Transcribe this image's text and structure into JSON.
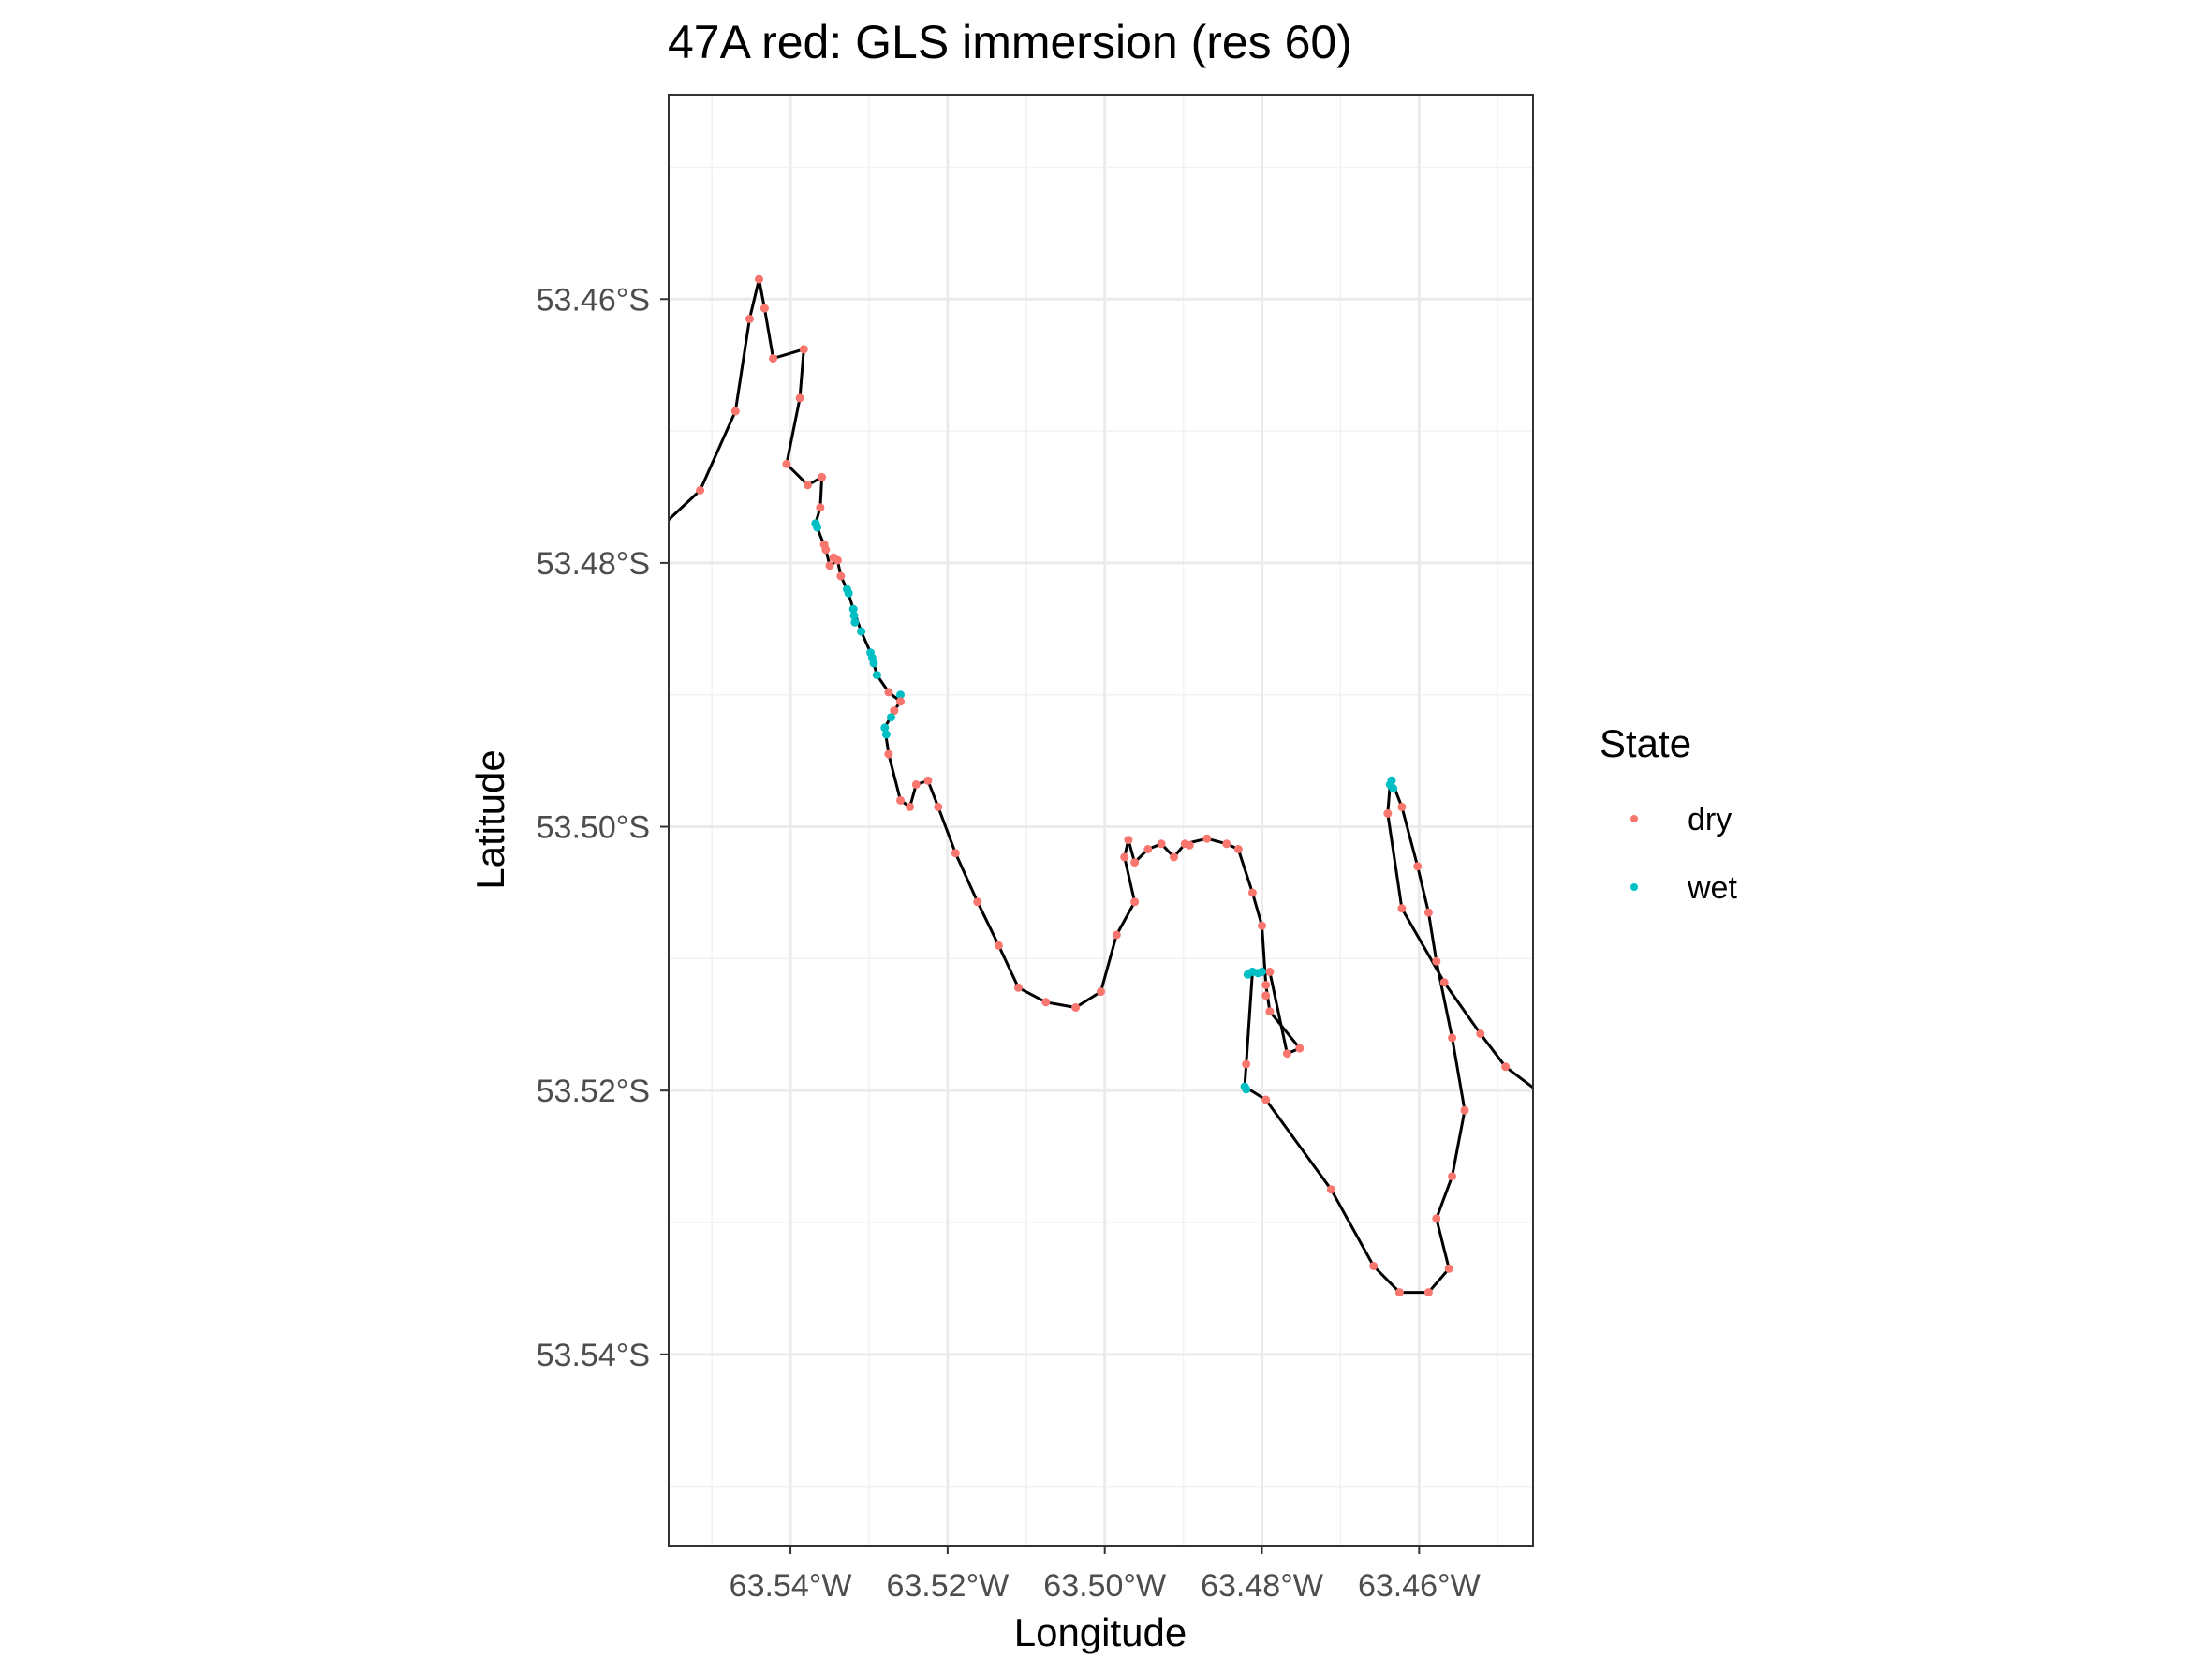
{
  "chart_data": {
    "type": "scatter",
    "title": "47A red: GLS immersion (res 60)",
    "xlabel": "Longitude",
    "ylabel": "Latitude",
    "xlim": [
      -63.5555,
      -63.4455
    ],
    "ylim": [
      -53.5545,
      -53.4445
    ],
    "x_ticks": [
      {
        "value": -63.54,
        "label": "63.54°W"
      },
      {
        "value": -63.52,
        "label": "63.52°W"
      },
      {
        "value": -63.5,
        "label": "63.50°W"
      },
      {
        "value": -63.48,
        "label": "63.48°W"
      },
      {
        "value": -63.46,
        "label": "63.46°W"
      }
    ],
    "y_ticks": [
      {
        "value": -53.46,
        "label": "53.46°S"
      },
      {
        "value": -53.48,
        "label": "53.48°S"
      },
      {
        "value": -53.5,
        "label": "53.50°S"
      },
      {
        "value": -53.52,
        "label": "53.52°S"
      },
      {
        "value": -53.54,
        "label": "53.54°S"
      }
    ],
    "grid": true,
    "legend": {
      "title": "State",
      "position": "right",
      "entries": [
        {
          "label": "dry",
          "color": "#F8766D"
        },
        {
          "label": "wet",
          "color": "#00BFC4"
        }
      ]
    },
    "track_color": "#000000",
    "track": [
      [
        -63.556,
        -53.477
      ],
      [
        -63.5515,
        -53.4745
      ],
      [
        -63.547,
        -53.4685
      ],
      [
        -63.5452,
        -53.4615
      ],
      [
        -63.544,
        -53.4585
      ],
      [
        -63.5433,
        -53.4607
      ],
      [
        -63.5422,
        -53.4645
      ],
      [
        -63.5383,
        -53.4638
      ],
      [
        -63.5388,
        -53.4675
      ],
      [
        -63.5405,
        -53.4725
      ],
      [
        -63.5378,
        -53.4741
      ],
      [
        -63.536,
        -53.4735
      ],
      [
        -63.5362,
        -53.4758
      ],
      [
        -63.5368,
        -53.477
      ],
      [
        -63.5355,
        -53.479
      ],
      [
        -63.535,
        -53.4802
      ],
      [
        -63.534,
        -53.4798
      ],
      [
        -63.5336,
        -53.481
      ],
      [
        -63.5328,
        -53.482
      ],
      [
        -63.532,
        -53.4835
      ],
      [
        -63.531,
        -53.4852
      ],
      [
        -63.5298,
        -53.4868
      ],
      [
        -63.529,
        -53.4885
      ],
      [
        -63.5275,
        -53.4898
      ],
      [
        -63.526,
        -53.4905
      ],
      [
        -63.5268,
        -53.4912
      ],
      [
        -63.528,
        -53.4925
      ],
      [
        -63.5275,
        -53.4945
      ],
      [
        -63.526,
        -53.498
      ],
      [
        -63.5248,
        -53.4985
      ],
      [
        -63.524,
        -53.4968
      ],
      [
        -63.5225,
        -53.4965
      ],
      [
        -63.5212,
        -53.4985
      ],
      [
        -63.519,
        -53.502
      ],
      [
        -63.5162,
        -53.5057
      ],
      [
        -63.5135,
        -53.509
      ],
      [
        -63.511,
        -53.5122
      ],
      [
        -63.5075,
        -53.5133
      ],
      [
        -63.5037,
        -53.5137
      ],
      [
        -63.5005,
        -53.5125
      ],
      [
        -63.4985,
        -53.5082
      ],
      [
        -63.4962,
        -53.5057
      ],
      [
        -63.4975,
        -53.5023
      ],
      [
        -63.497,
        -53.501
      ],
      [
        -63.4962,
        -53.5027
      ],
      [
        -63.4945,
        -53.5017
      ],
      [
        -63.4928,
        -53.5013
      ],
      [
        -63.4912,
        -53.5023
      ],
      [
        -63.4898,
        -53.5013
      ],
      [
        -63.487,
        -53.5009
      ],
      [
        -63.4845,
        -53.5013
      ],
      [
        -63.483,
        -53.5017
      ],
      [
        -63.4812,
        -53.505
      ],
      [
        -63.48,
        -53.5075
      ],
      [
        -63.4795,
        -53.512
      ],
      [
        -63.479,
        -53.514
      ],
      [
        -63.4752,
        -53.5168
      ],
      [
        -63.4768,
        -53.5172
      ],
      [
        -63.479,
        -53.511
      ],
      [
        -63.48,
        -53.511
      ],
      [
        -63.4812,
        -53.511
      ],
      [
        -63.482,
        -53.518
      ],
      [
        -63.4822,
        -53.5197
      ],
      [
        -63.4795,
        -53.5207
      ],
      [
        -63.4712,
        -53.5275
      ],
      [
        -63.4658,
        -53.5333
      ],
      [
        -63.4625,
        -53.5353
      ],
      [
        -63.4588,
        -53.5353
      ],
      [
        -63.4562,
        -53.5335
      ],
      [
        -63.4578,
        -53.5297
      ],
      [
        -63.4558,
        -53.5265
      ],
      [
        -63.4542,
        -53.5215
      ],
      [
        -63.4558,
        -53.516
      ],
      [
        -63.4578,
        -53.5102
      ],
      [
        -63.4588,
        -53.5065
      ],
      [
        -63.4602,
        -53.503
      ],
      [
        -63.4622,
        -53.4985
      ],
      [
        -63.4635,
        -53.4965
      ],
      [
        -63.4637,
        -53.4968
      ],
      [
        -63.464,
        -53.499
      ],
      [
        -63.4622,
        -53.5062
      ],
      [
        -63.4568,
        -53.5118
      ],
      [
        -63.4522,
        -53.5157
      ],
      [
        -63.449,
        -53.5182
      ],
      [
        -63.445,
        -53.52
      ]
    ],
    "points": [
      {
        "x": -63.5515,
        "y": -53.4745,
        "state": "dry"
      },
      {
        "x": -63.547,
        "y": -53.4685,
        "state": "dry"
      },
      {
        "x": -63.5452,
        "y": -53.4615,
        "state": "dry"
      },
      {
        "x": -63.544,
        "y": -53.4585,
        "state": "dry"
      },
      {
        "x": -63.5433,
        "y": -53.4607,
        "state": "dry"
      },
      {
        "x": -63.5422,
        "y": -53.4645,
        "state": "dry"
      },
      {
        "x": -63.5383,
        "y": -53.4638,
        "state": "dry"
      },
      {
        "x": -63.5388,
        "y": -53.4675,
        "state": "dry"
      },
      {
        "x": -63.5405,
        "y": -53.4725,
        "state": "dry"
      },
      {
        "x": -63.5378,
        "y": -53.4741,
        "state": "dry"
      },
      {
        "x": -63.536,
        "y": -53.4735,
        "state": "dry"
      },
      {
        "x": -63.5362,
        "y": -53.4758,
        "state": "dry"
      },
      {
        "x": -63.5368,
        "y": -53.477,
        "state": "wet"
      },
      {
        "x": -63.5366,
        "y": -53.4773,
        "state": "wet"
      },
      {
        "x": -63.5357,
        "y": -53.4786,
        "state": "dry"
      },
      {
        "x": -63.5355,
        "y": -53.479,
        "state": "dry"
      },
      {
        "x": -63.535,
        "y": -53.4802,
        "state": "dry"
      },
      {
        "x": -63.5345,
        "y": -53.4796,
        "state": "dry"
      },
      {
        "x": -63.534,
        "y": -53.4798,
        "state": "dry"
      },
      {
        "x": -63.5336,
        "y": -53.481,
        "state": "dry"
      },
      {
        "x": -63.5328,
        "y": -53.482,
        "state": "wet"
      },
      {
        "x": -63.5326,
        "y": -53.4823,
        "state": "wet"
      },
      {
        "x": -63.532,
        "y": -53.4835,
        "state": "wet"
      },
      {
        "x": -63.5319,
        "y": -53.484,
        "state": "wet"
      },
      {
        "x": -63.5318,
        "y": -53.4845,
        "state": "wet"
      },
      {
        "x": -63.531,
        "y": -53.4852,
        "state": "wet"
      },
      {
        "x": -63.5298,
        "y": -53.4868,
        "state": "wet"
      },
      {
        "x": -63.5296,
        "y": -53.4872,
        "state": "wet"
      },
      {
        "x": -63.5294,
        "y": -53.4876,
        "state": "wet"
      },
      {
        "x": -63.529,
        "y": -53.4885,
        "state": "wet"
      },
      {
        "x": -63.5275,
        "y": -53.4898,
        "state": "dry"
      },
      {
        "x": -63.526,
        "y": -53.49,
        "state": "wet"
      },
      {
        "x": -63.526,
        "y": -53.4905,
        "state": "dry"
      },
      {
        "x": -63.5268,
        "y": -53.4912,
        "state": "dry"
      },
      {
        "x": -63.5272,
        "y": -53.4917,
        "state": "wet"
      },
      {
        "x": -63.528,
        "y": -53.4925,
        "state": "wet"
      },
      {
        "x": -63.5278,
        "y": -53.493,
        "state": "wet"
      },
      {
        "x": -63.5275,
        "y": -53.4945,
        "state": "dry"
      },
      {
        "x": -63.526,
        "y": -53.498,
        "state": "dry"
      },
      {
        "x": -63.5248,
        "y": -53.4985,
        "state": "dry"
      },
      {
        "x": -63.524,
        "y": -53.4968,
        "state": "dry"
      },
      {
        "x": -63.5225,
        "y": -53.4965,
        "state": "dry"
      },
      {
        "x": -63.5212,
        "y": -53.4985,
        "state": "dry"
      },
      {
        "x": -63.519,
        "y": -53.502,
        "state": "dry"
      },
      {
        "x": -63.5162,
        "y": -53.5057,
        "state": "dry"
      },
      {
        "x": -63.5135,
        "y": -53.509,
        "state": "dry"
      },
      {
        "x": -63.511,
        "y": -53.5122,
        "state": "dry"
      },
      {
        "x": -63.5075,
        "y": -53.5133,
        "state": "dry"
      },
      {
        "x": -63.5037,
        "y": -53.5137,
        "state": "dry"
      },
      {
        "x": -63.5005,
        "y": -53.5125,
        "state": "dry"
      },
      {
        "x": -63.4985,
        "y": -53.5082,
        "state": "dry"
      },
      {
        "x": -63.4962,
        "y": -53.5057,
        "state": "dry"
      },
      {
        "x": -63.4975,
        "y": -53.5023,
        "state": "dry"
      },
      {
        "x": -63.497,
        "y": -53.501,
        "state": "dry"
      },
      {
        "x": -63.4962,
        "y": -53.5027,
        "state": "dry"
      },
      {
        "x": -63.4945,
        "y": -53.5017,
        "state": "dry"
      },
      {
        "x": -63.4928,
        "y": -53.5013,
        "state": "dry"
      },
      {
        "x": -63.4912,
        "y": -53.5023,
        "state": "dry"
      },
      {
        "x": -63.4898,
        "y": -53.5013,
        "state": "dry"
      },
      {
        "x": -63.4892,
        "y": -53.5014,
        "state": "dry"
      },
      {
        "x": -63.487,
        "y": -53.5009,
        "state": "dry"
      },
      {
        "x": -63.4845,
        "y": -53.5013,
        "state": "dry"
      },
      {
        "x": -63.483,
        "y": -53.5017,
        "state": "dry"
      },
      {
        "x": -63.4812,
        "y": -53.505,
        "state": "dry"
      },
      {
        "x": -63.48,
        "y": -53.5075,
        "state": "dry"
      },
      {
        "x": -63.4795,
        "y": -53.512,
        "state": "dry"
      },
      {
        "x": -63.479,
        "y": -53.514,
        "state": "dry"
      },
      {
        "x": -63.4752,
        "y": -53.5168,
        "state": "dry"
      },
      {
        "x": -63.4768,
        "y": -53.5172,
        "state": "dry"
      },
      {
        "x": -63.479,
        "y": -53.511,
        "state": "dry"
      },
      {
        "x": -63.4795,
        "y": -53.5128,
        "state": "dry"
      },
      {
        "x": -63.48,
        "y": -53.511,
        "state": "wet"
      },
      {
        "x": -63.4805,
        "y": -53.5111,
        "state": "wet"
      },
      {
        "x": -63.4812,
        "y": -53.511,
        "state": "wet"
      },
      {
        "x": -63.4818,
        "y": -53.5112,
        "state": "wet"
      },
      {
        "x": -63.482,
        "y": -53.518,
        "state": "dry"
      },
      {
        "x": -63.4822,
        "y": -53.5197,
        "state": "wet"
      },
      {
        "x": -63.482,
        "y": -53.5199,
        "state": "wet"
      },
      {
        "x": -63.4795,
        "y": -53.5207,
        "state": "dry"
      },
      {
        "x": -63.4712,
        "y": -53.5275,
        "state": "dry"
      },
      {
        "x": -63.4658,
        "y": -53.5333,
        "state": "dry"
      },
      {
        "x": -63.4625,
        "y": -53.5353,
        "state": "dry"
      },
      {
        "x": -63.4588,
        "y": -53.5353,
        "state": "dry"
      },
      {
        "x": -63.4562,
        "y": -53.5335,
        "state": "dry"
      },
      {
        "x": -63.4578,
        "y": -53.5297,
        "state": "dry"
      },
      {
        "x": -63.4558,
        "y": -53.5265,
        "state": "dry"
      },
      {
        "x": -63.4542,
        "y": -53.5215,
        "state": "dry"
      },
      {
        "x": -63.4558,
        "y": -53.516,
        "state": "dry"
      },
      {
        "x": -63.4578,
        "y": -53.5102,
        "state": "dry"
      },
      {
        "x": -63.4588,
        "y": -53.5065,
        "state": "dry"
      },
      {
        "x": -63.4602,
        "y": -53.503,
        "state": "dry"
      },
      {
        "x": -63.4622,
        "y": -53.4985,
        "state": "dry"
      },
      {
        "x": -63.4635,
        "y": -53.4965,
        "state": "wet"
      },
      {
        "x": -63.4637,
        "y": -53.4968,
        "state": "wet"
      },
      {
        "x": -63.4633,
        "y": -53.4971,
        "state": "wet"
      },
      {
        "x": -63.464,
        "y": -53.499,
        "state": "dry"
      },
      {
        "x": -63.4622,
        "y": -53.5062,
        "state": "dry"
      },
      {
        "x": -63.4568,
        "y": -53.5118,
        "state": "dry"
      },
      {
        "x": -63.4522,
        "y": -53.5157,
        "state": "dry"
      },
      {
        "x": -63.449,
        "y": -53.5182,
        "state": "dry"
      }
    ]
  }
}
